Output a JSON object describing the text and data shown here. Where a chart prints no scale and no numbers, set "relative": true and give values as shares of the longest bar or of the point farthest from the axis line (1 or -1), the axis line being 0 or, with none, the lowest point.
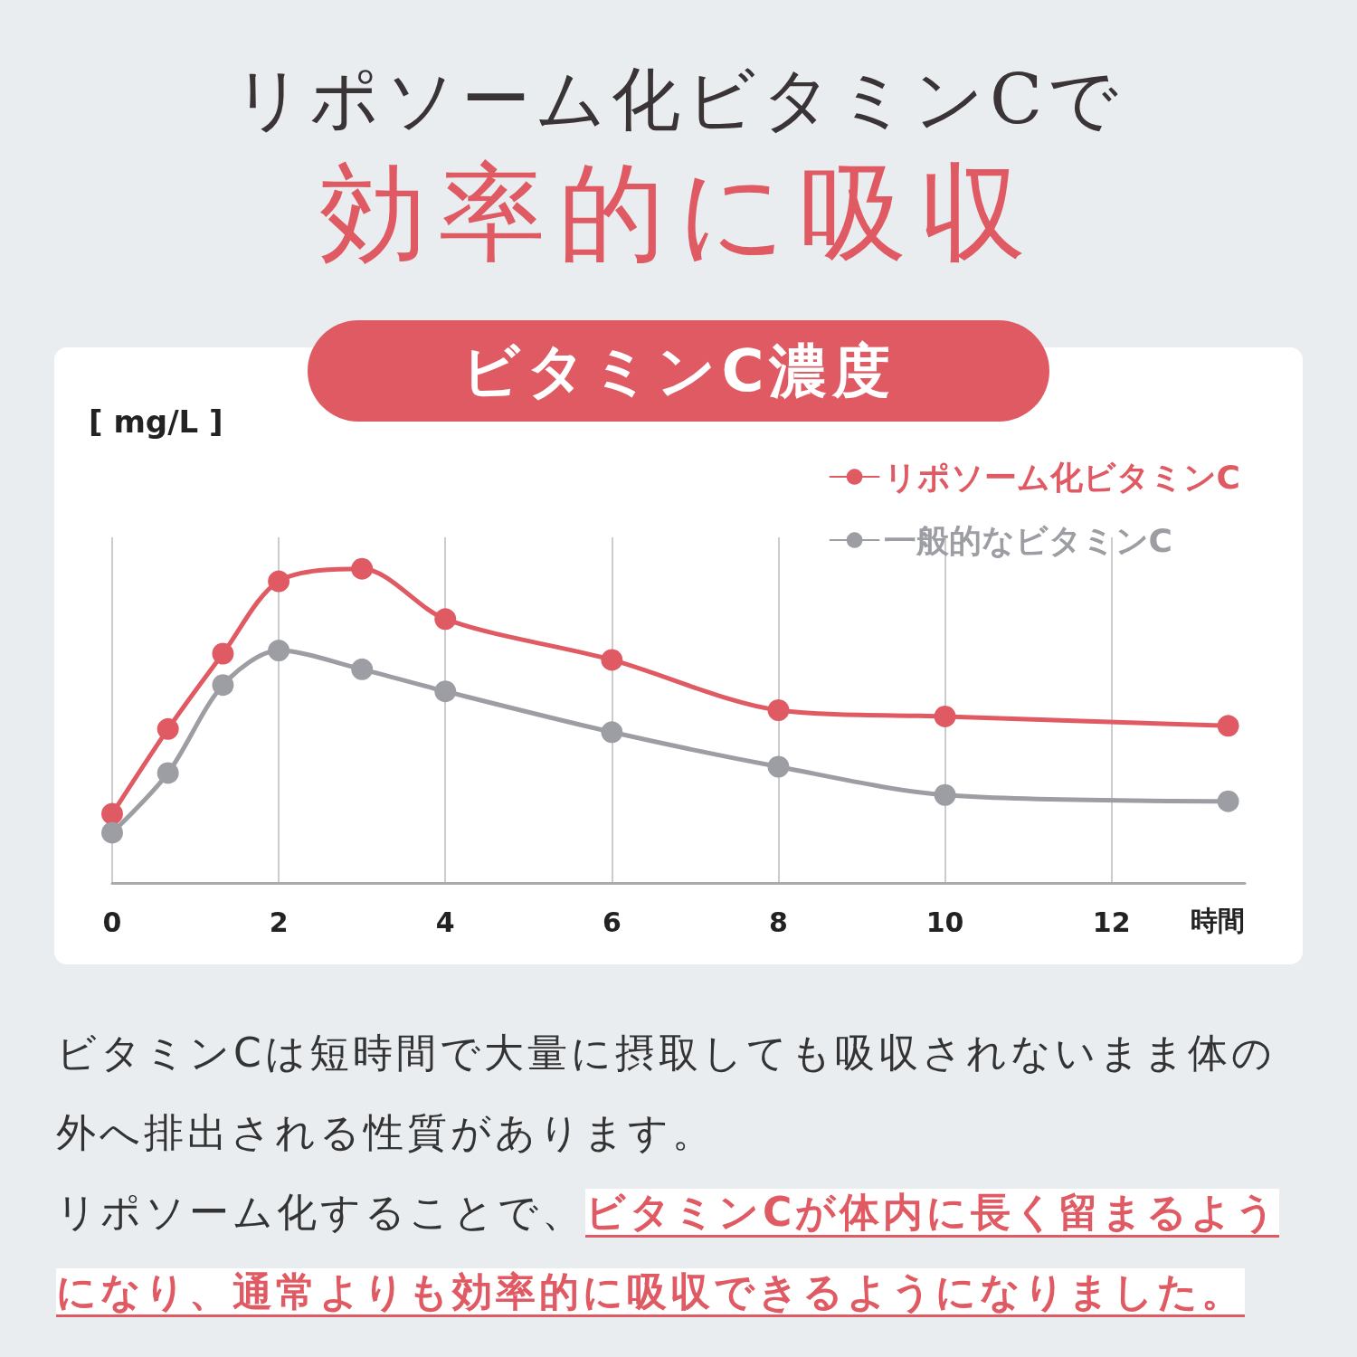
{
  "chart_data": {
    "type": "line",
    "title": "リポソーム化ビタミンCで",
    "subtitle": "効率的に吸収",
    "ylabel": "[ mg/L ]",
    "xlabel": "時間",
    "relative": true,
    "xlim": [
      0,
      13.6
    ],
    "xticks": [
      0,
      2,
      4,
      6,
      8,
      10,
      12
    ],
    "grid": "x",
    "legend": "top right",
    "marker": "circle",
    "line_style": "solid",
    "series": [
      {
        "name": "リポソーム化ビタミンC",
        "color": "#e05a63",
        "x": [
          0,
          0.67,
          1.33,
          2,
          3,
          4,
          6,
          8,
          10,
          13.4
        ],
        "values": [
          0.22,
          0.49,
          0.73,
          0.96,
          1,
          0.84,
          0.71,
          0.55,
          0.53,
          0.5
        ]
      },
      {
        "name": "一般的なビタミンC",
        "color": "#9c9ea3",
        "x": [
          0,
          0.67,
          1.33,
          2,
          3,
          4,
          6,
          8,
          10,
          13.4
        ],
        "values": [
          0.16,
          0.35,
          0.63,
          0.74,
          0.68,
          0.61,
          0.48,
          0.37,
          0.28,
          0.26
        ]
      }
    ],
    "annotations": [
      "ビタミンC濃度",
      "ビタミンCは短時間で大量に摂取しても吸収されないまま体の外へ排出される性質があります。",
      "リポソーム化することで、",
      "ビタミンCが体内に長く留まるようになり、通常よりも効率的に吸収できるようになりました。"
    ]
  }
}
